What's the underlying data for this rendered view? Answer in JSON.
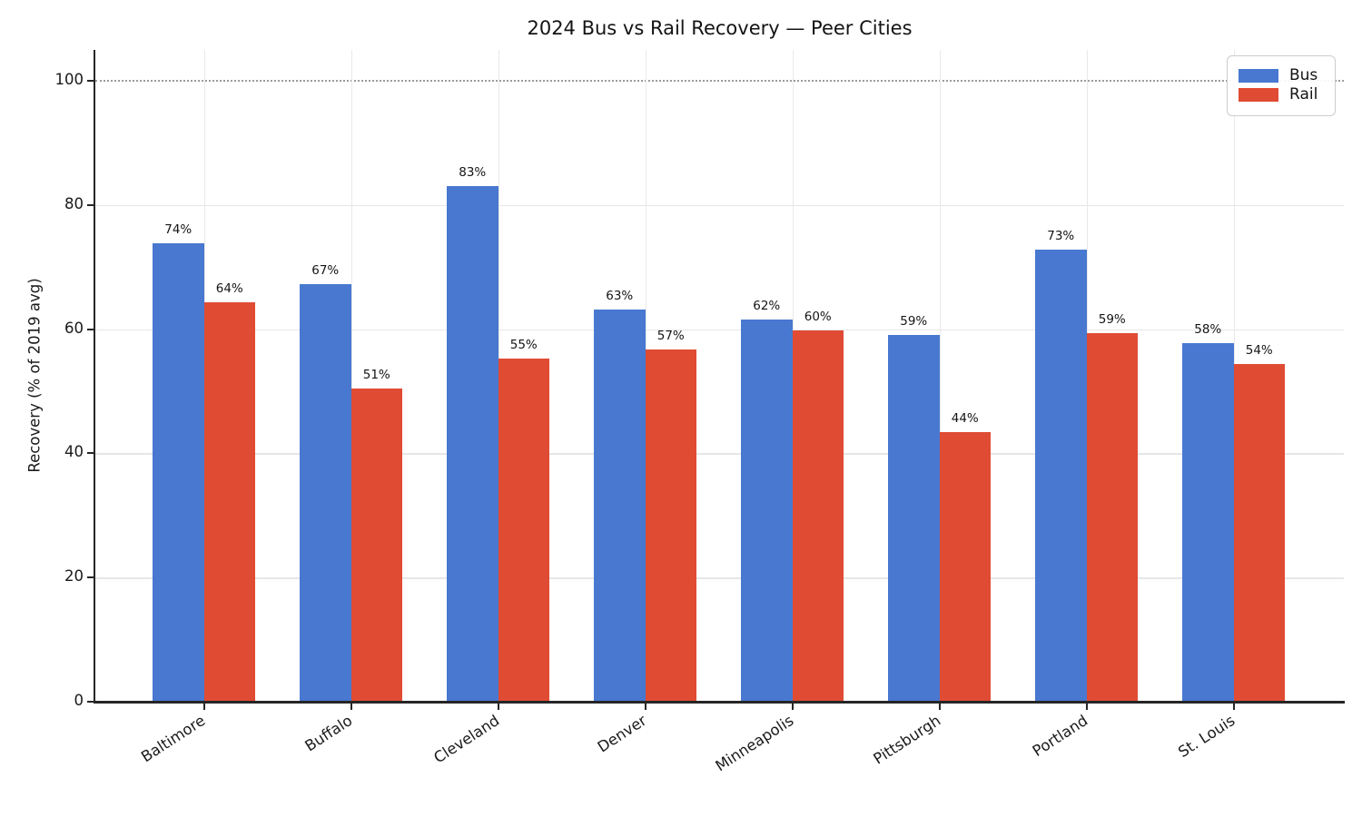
{
  "chart_data": {
    "type": "bar",
    "title": "2024 Bus vs Rail Recovery — Peer Cities",
    "xlabel": "",
    "ylabel": "Recovery (% of 2019 avg)",
    "categories": [
      "Baltimore",
      "Buffalo",
      "Cleveland",
      "Denver",
      "Minneapolis",
      "Pittsburgh",
      "Portland",
      "St. Louis"
    ],
    "series": [
      {
        "name": "Bus",
        "color": "#4878d0",
        "values": [
          73.9,
          67.2,
          83.1,
          63.2,
          61.5,
          59.1,
          72.8,
          57.8
        ],
        "value_labels": [
          "74%",
          "67%",
          "83%",
          "63%",
          "62%",
          "59%",
          "73%",
          "58%"
        ]
      },
      {
        "name": "Rail",
        "color": "#e04b33",
        "values": [
          64.4,
          50.5,
          55.3,
          56.8,
          59.8,
          43.5,
          59.4,
          54.4
        ],
        "value_labels": [
          "64%",
          "51%",
          "55%",
          "57%",
          "60%",
          "44%",
          "59%",
          "54%"
        ]
      }
    ],
    "ylim": [
      0,
      105
    ],
    "yticks": [
      0,
      20,
      40,
      60,
      80,
      100
    ],
    "reference_line": {
      "value": 100,
      "style": "dotted",
      "color": "#9a9a9a"
    },
    "grid": true,
    "legend": {
      "position": "upper right",
      "entries": [
        "Bus",
        "Rail"
      ]
    },
    "colors": {
      "bus": "#4878d0",
      "rail": "#e04b33",
      "gridline": "#e6e6e6",
      "axis": "#262626",
      "text": "#1a1a1a",
      "background": "#ffffff"
    }
  }
}
